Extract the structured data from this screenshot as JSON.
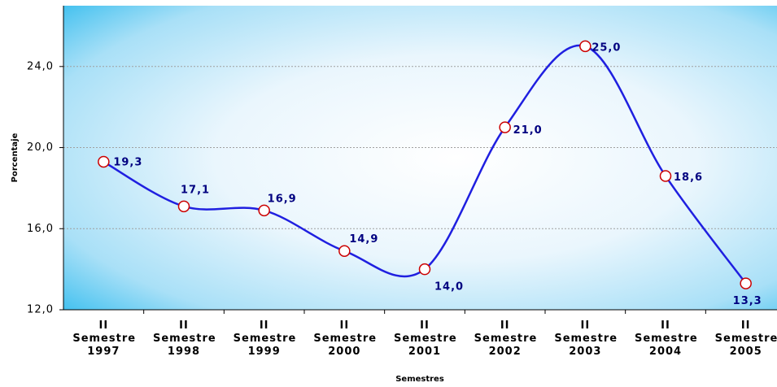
{
  "chart_data": {
    "type": "line",
    "x_label": "Semestres",
    "y_label": "Porcentaje",
    "categories": [
      "II Semestre 1997",
      "II Semestre 1998",
      "II Semestre 1999",
      "II Semestre 2000",
      "II Semestre 2001",
      "II Semestre 2002",
      "II Semestre 2003",
      "II Semestre 2004",
      "II Semestre 2005"
    ],
    "series": [
      {
        "name": "Porcentaje",
        "color": "#1f1fe0",
        "values": [
          19.3,
          17.1,
          16.9,
          14.9,
          14.0,
          21.0,
          25.0,
          18.6,
          13.3
        ],
        "value_labels": [
          "19,3",
          "17,1",
          "16,9",
          "14,9",
          "14,0",
          "21,0",
          "25,0",
          "18,6",
          "13,3"
        ]
      }
    ],
    "ylim": [
      12,
      27
    ],
    "yticks": [
      {
        "value": 12,
        "label": "12,0"
      },
      {
        "value": 16,
        "label": "16,0"
      },
      {
        "value": 20,
        "label": "20,0"
      },
      {
        "value": 24,
        "label": "24,0"
      }
    ],
    "grid": true
  }
}
